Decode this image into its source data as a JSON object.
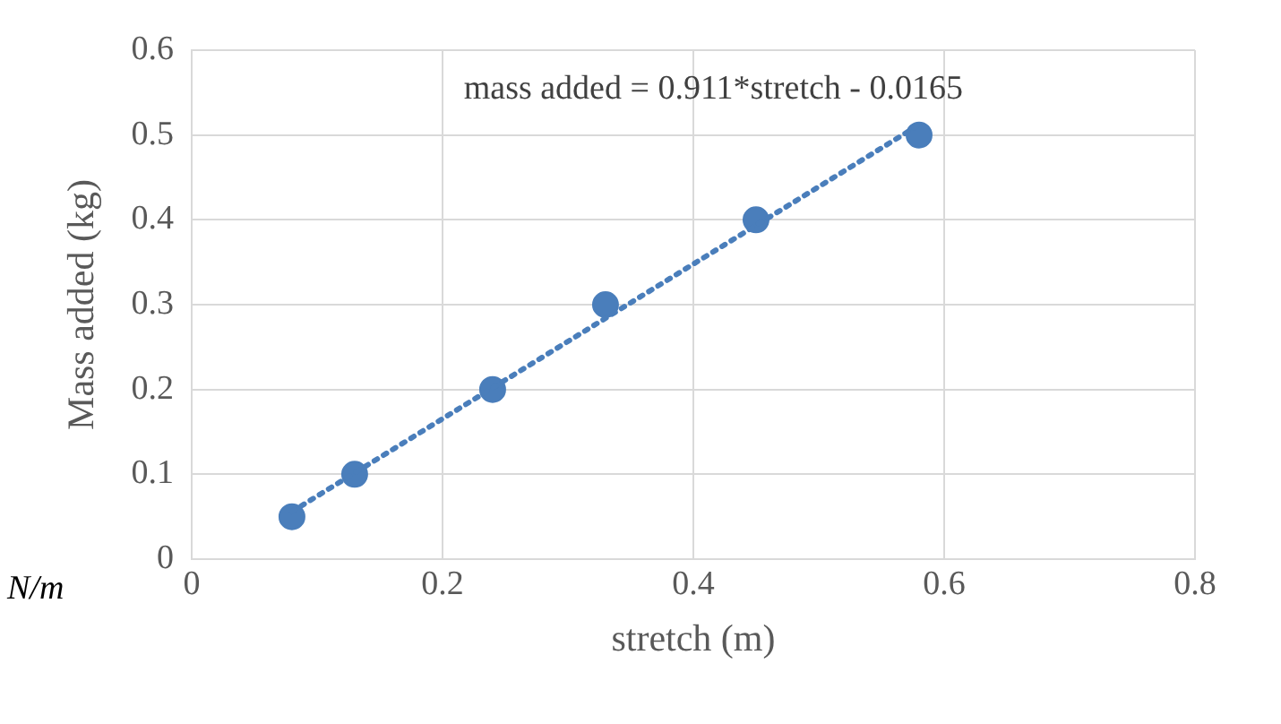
{
  "chart_data": {
    "type": "scatter",
    "xlabel": "stretch (m)",
    "ylabel": "Mass added (kg)",
    "annotations": [
      "mass added = 0.911*stretch - 0.0165",
      "N/m"
    ],
    "xlim": [
      0,
      0.8
    ],
    "xticks": [
      0,
      0.2,
      0.4,
      0.6,
      0.8
    ],
    "ylim": [
      0,
      0.6
    ],
    "yticks": [
      0,
      0.1,
      0.2,
      0.3,
      0.4,
      0.5,
      0.6
    ],
    "grid": true,
    "legend": false,
    "marker": "circle",
    "series": [
      {
        "color": "#4a7ebb",
        "x": [
          0.08,
          0.13,
          0.24,
          0.33,
          0.45,
          0.58
        ],
        "values": [
          0.05,
          0.1,
          0.2,
          0.3,
          0.4,
          0.5
        ]
      },
      {
        "type": "line",
        "color": "#4a7ebb",
        "line_style": "dotted",
        "marker": "none",
        "x": [
          0.08,
          0.58
        ],
        "values": [
          0.056,
          0.512
        ]
      }
    ]
  }
}
